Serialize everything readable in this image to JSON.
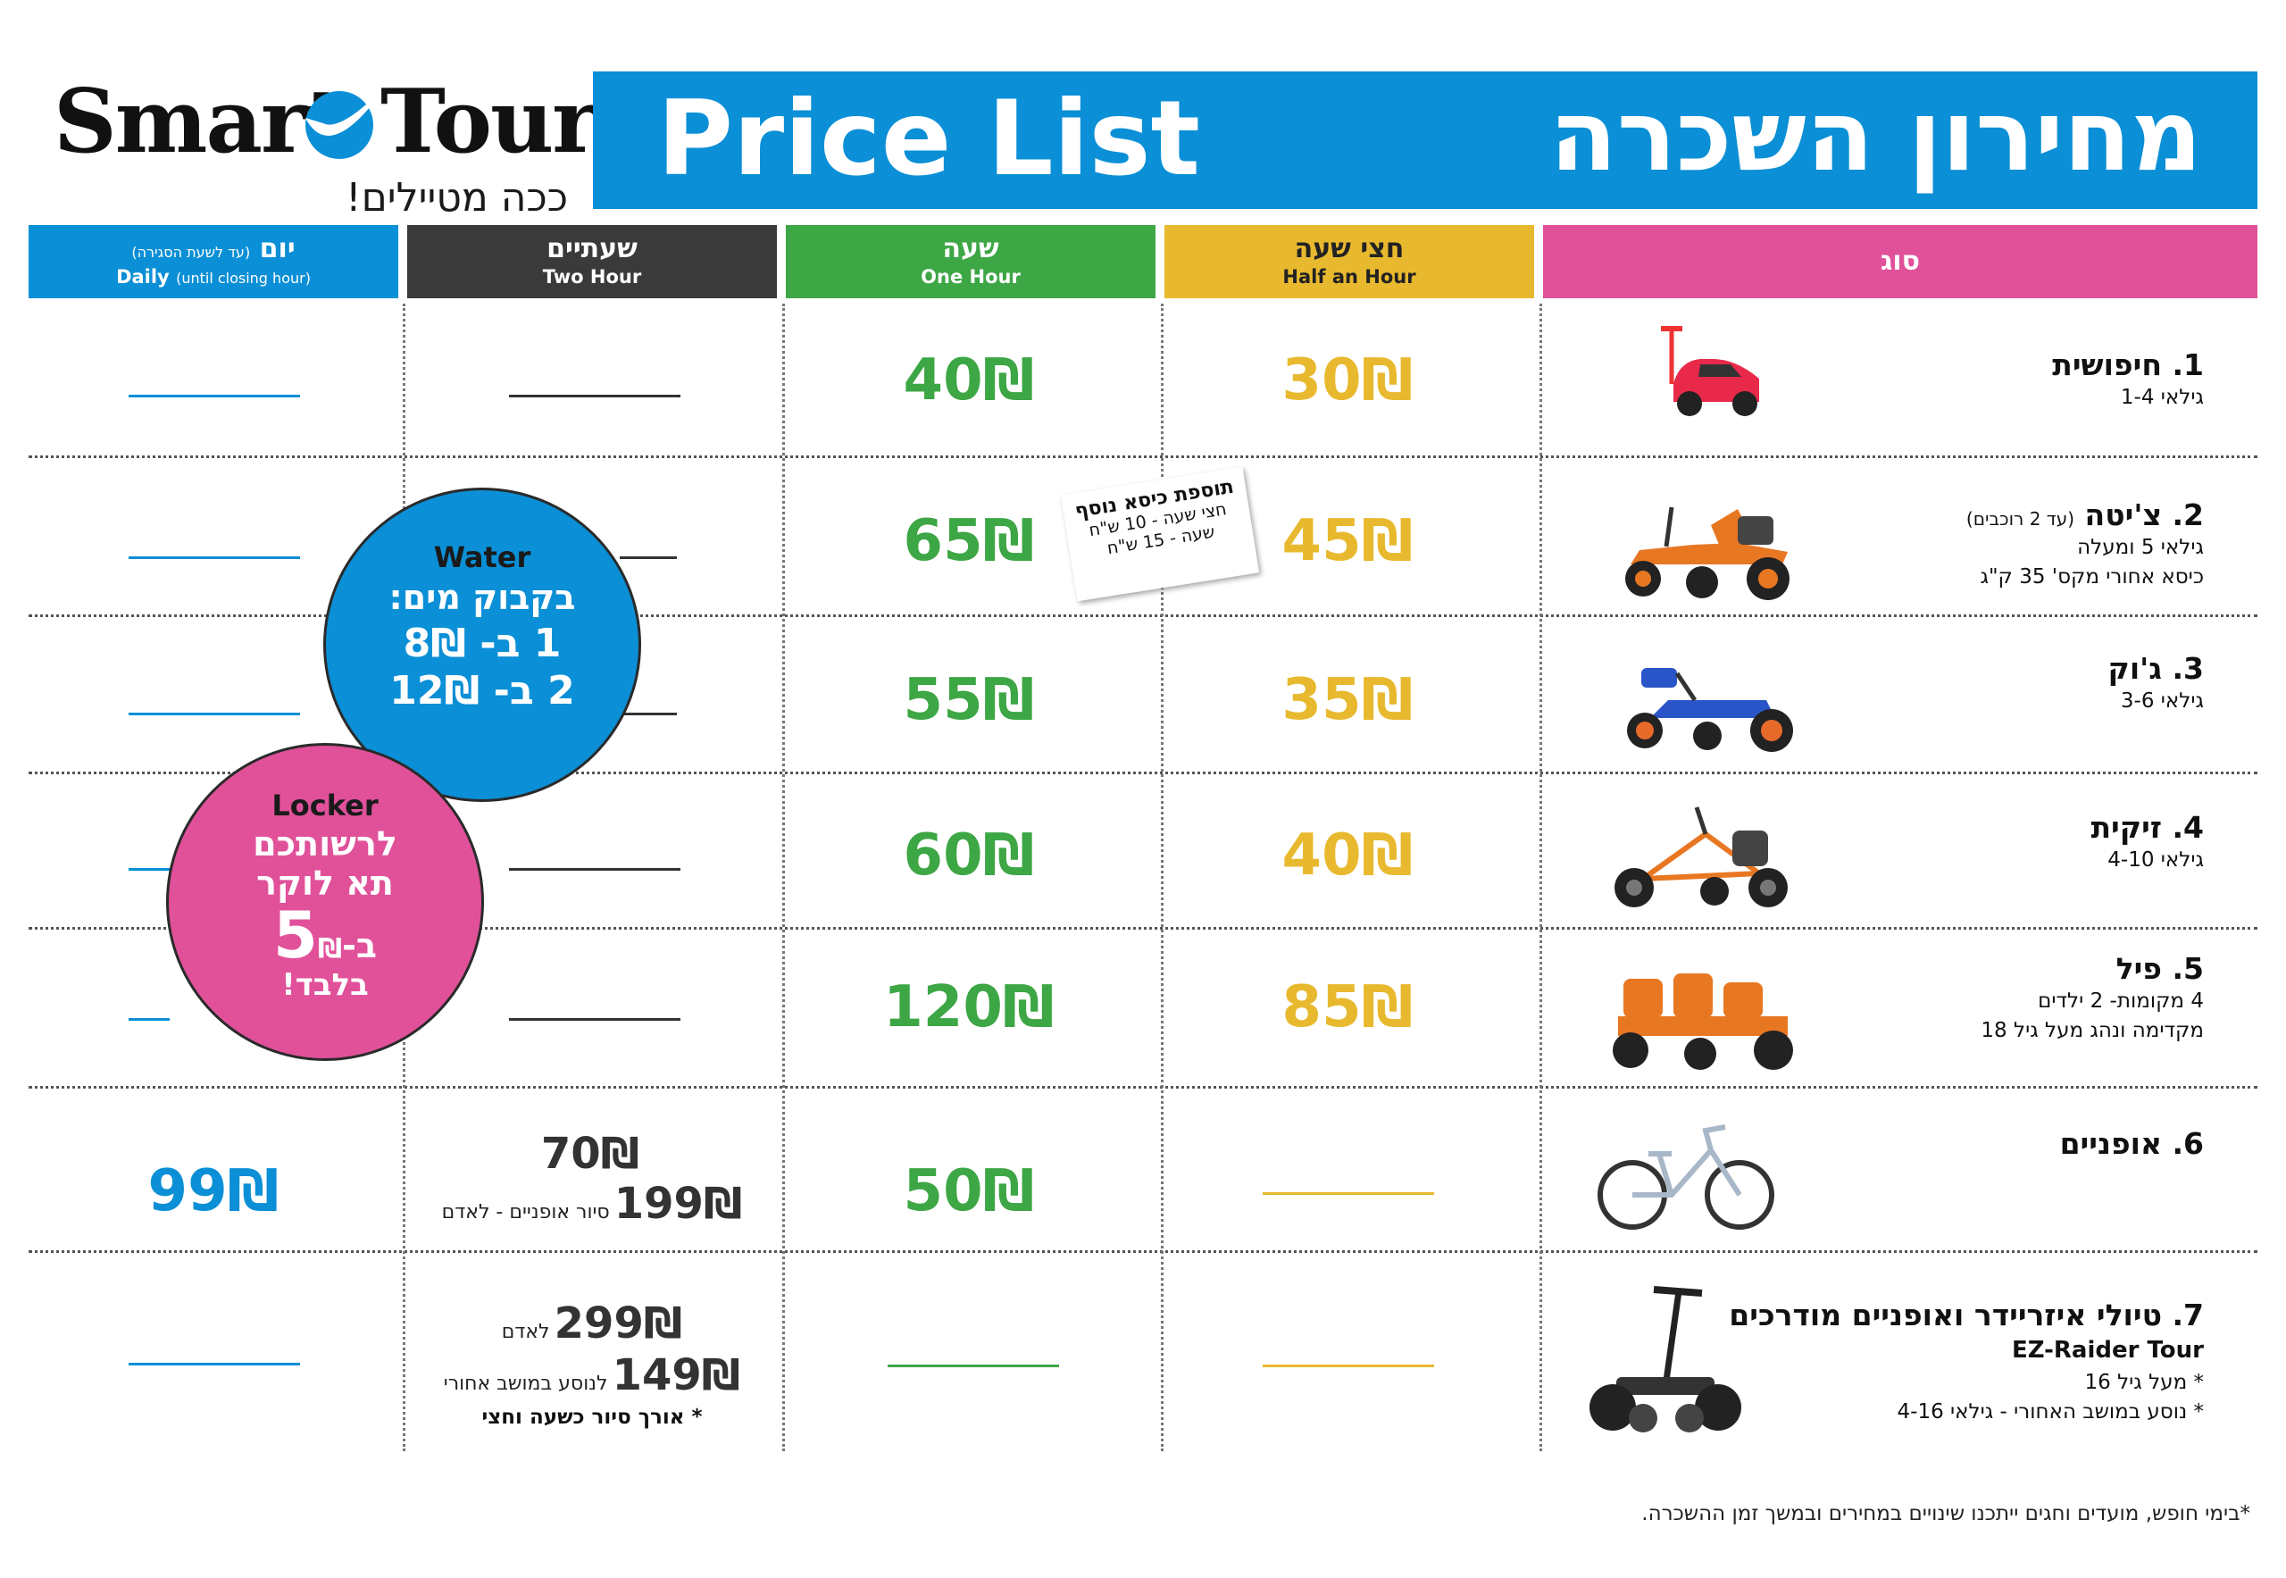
{
  "logo": {
    "word1": "Smart",
    "word2": "Tour",
    "slogan": "ככה מטיילים!"
  },
  "title": {
    "en": "Price List",
    "he": "מחירון השכרה"
  },
  "columns": {
    "daily": {
      "he": "יום",
      "he_note": "(עד לשעת הסגירה)",
      "en": "Daily",
      "en_note": "(until closing hour)"
    },
    "two_hour": {
      "he": "שעתיים",
      "en": "Two Hour"
    },
    "one_hour": {
      "he": "שעה",
      "en": "One Hour"
    },
    "half_hour": {
      "he": "חצי שעה",
      "en": "Half an Hour"
    },
    "type": {
      "he": "סוג"
    }
  },
  "rows": [
    {
      "name": "1. חיפושית",
      "lines": [
        "גילאי 1-4"
      ],
      "half": "30₪",
      "hour": "40₪"
    },
    {
      "name": "2. צ'יטה",
      "name_note": "(עד 2 רוכבים)",
      "lines": [
        "גילאי 5 ומעלה",
        "כיסא אחורי מקס' 35 ק\"ג"
      ],
      "half": "45₪",
      "hour": "65₪"
    },
    {
      "name": "3. ג'וק",
      "lines": [
        "גילאי 3-6"
      ],
      "half": "35₪",
      "hour": "55₪"
    },
    {
      "name": "4. זיקית",
      "lines": [
        "גילאי 4-10"
      ],
      "half": "40₪",
      "hour": "60₪"
    },
    {
      "name": "5. פיל",
      "lines": [
        "4 מקומות- 2 ילדים",
        "מקדימה ונהג מעל גיל 18"
      ],
      "half": "85₪",
      "hour": "120₪"
    },
    {
      "name": "6. אופניים",
      "lines": [],
      "hour": "50₪",
      "two_hour": "70₪",
      "two_hour_extra": "199₪",
      "two_hour_extra_note": "סיור אופניים - לאדם",
      "daily": "99₪"
    },
    {
      "name": "7. טיולי איזריידר ואופניים מודרכים",
      "en_name": "EZ-Raider Tour",
      "lines": [
        "* מעל גיל 16",
        "* נוסע במושב האחורי - גילאי 4-16"
      ],
      "two_hour_a": "299₪",
      "two_hour_a_note": "לאדם",
      "two_hour_b": "149₪",
      "two_hour_b_note": "לנוסע במושב אחורי",
      "two_hour_c": "* אורך סיור כשעה וחצי"
    }
  ],
  "extra_seat_note": {
    "title": "תוספת כיסא נוסף",
    "line1": "חצי שעה - 10 ש\"ח",
    "line2": "שעה - 15 ש\"ח"
  },
  "water_bubble": {
    "title": "Water",
    "line1": "בקבוק מים:",
    "line2": "1 ב- 8₪",
    "line3": "2 ב- 12₪"
  },
  "locker_bubble": {
    "title": "Locker",
    "line1": "לרשותכם",
    "line2": "תא לוקר",
    "line3_prefix": "ב-",
    "line3_big": "5",
    "line3_suffix": "₪",
    "line4": "בלבד!"
  },
  "footnote": "*בימי חופש, מועדים וחגים ייתכנו שינויים במחירים ובמשך זמן ההשכרה.",
  "colors": {
    "blue": "#0b8fd6",
    "dark": "#3a3a3a",
    "green": "#3da645",
    "yellow": "#e8b92e",
    "pink": "#e0519a"
  }
}
